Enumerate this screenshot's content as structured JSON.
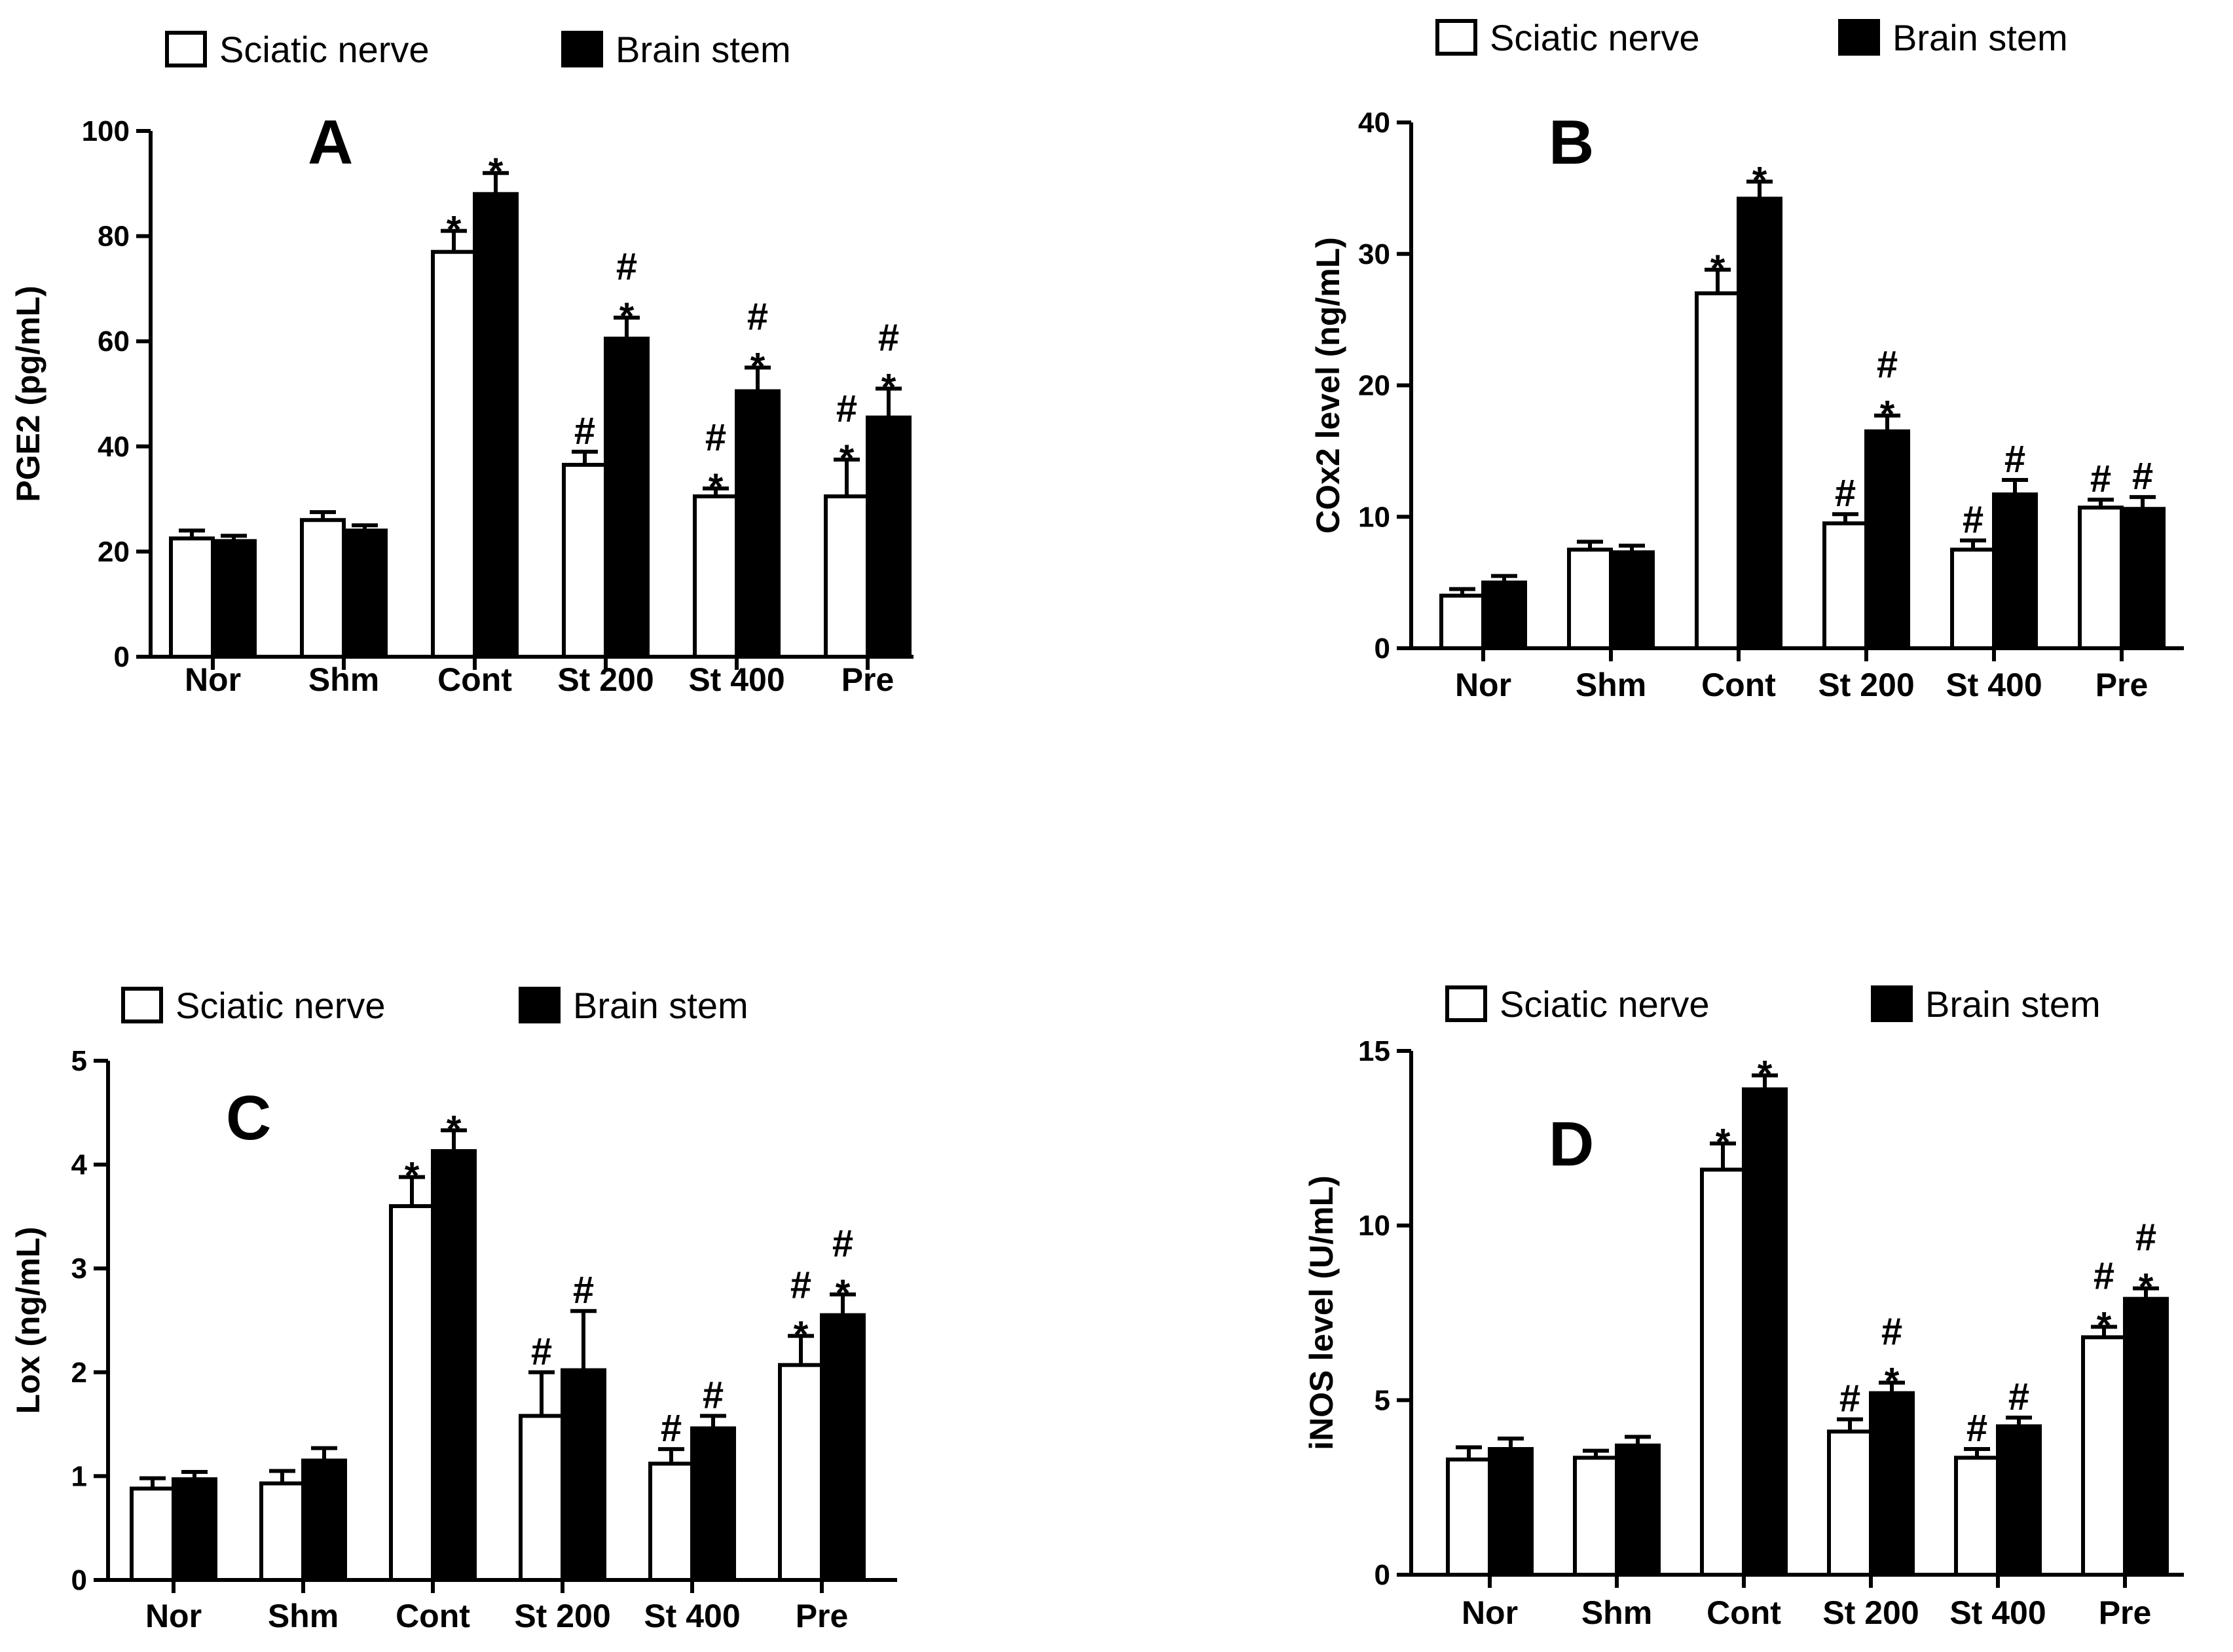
{
  "colors": {
    "sciatic_fill": "#ffffff",
    "brain_fill": "#000000",
    "stroke": "#000000"
  },
  "chart_data": [
    {
      "type": "bar",
      "panel": "A",
      "ylabel": "PGE2 (pg/mL)",
      "ylim": [
        0,
        100
      ],
      "yticks": [
        0,
        20,
        40,
        60,
        80,
        100
      ],
      "categories": [
        "Nor",
        "Shm",
        "Cont",
        "St 200",
        "St 400",
        "Pre"
      ],
      "legend": [
        "Sciatic nerve",
        "Brain stem"
      ],
      "series": [
        {
          "name": "Sciatic nerve",
          "values": [
            22.5,
            26,
            77,
            36.5,
            30.5,
            30.5
          ],
          "errors": [
            1.5,
            1.5,
            4,
            2.5,
            1.5,
            7
          ],
          "marks": [
            "",
            "",
            "*",
            "#",
            "*#",
            "*#"
          ]
        },
        {
          "name": "Brain stem",
          "values": [
            22,
            24,
            88,
            60.5,
            50.5,
            45.5
          ],
          "errors": [
            1,
            1,
            4,
            4,
            4.5,
            5.5
          ],
          "marks": [
            "",
            "",
            "*",
            "*#",
            "*#",
            "*#"
          ]
        }
      ]
    },
    {
      "type": "bar",
      "panel": "B",
      "ylabel": "COx2 level (ng/mL)",
      "ylim": [
        0,
        40
      ],
      "yticks": [
        0,
        10,
        20,
        30,
        40
      ],
      "categories": [
        "Nor",
        "Shm",
        "Cont",
        "St 200",
        "St 400",
        "Pre"
      ],
      "legend": [
        "Sciatic nerve",
        "Brain stem"
      ],
      "series": [
        {
          "name": "Sciatic nerve",
          "values": [
            4,
            7.5,
            27,
            9.5,
            7.5,
            10.7
          ],
          "errors": [
            0.5,
            0.6,
            1.8,
            0.7,
            0.7,
            0.6
          ],
          "marks": [
            "",
            "",
            "*",
            "#",
            "#",
            "#"
          ]
        },
        {
          "name": "Brain stem",
          "values": [
            5,
            7.3,
            34.2,
            16.5,
            11.7,
            10.6
          ],
          "errors": [
            0.5,
            0.5,
            1.3,
            1.2,
            1.1,
            0.9
          ],
          "marks": [
            "",
            "",
            "*",
            "*#",
            "#",
            "#"
          ]
        }
      ]
    },
    {
      "type": "bar",
      "panel": "C",
      "ylabel": "Lox (ng/mL)",
      "ylim": [
        0,
        5
      ],
      "yticks": [
        0,
        1,
        2,
        3,
        4,
        5
      ],
      "categories": [
        "Nor",
        "Shm",
        "Cont",
        "St 200",
        "St 400",
        "Pre"
      ],
      "legend": [
        "Sciatic nerve",
        "Brain stem"
      ],
      "series": [
        {
          "name": "Sciatic nerve",
          "values": [
            0.88,
            0.93,
            3.6,
            1.58,
            1.12,
            2.07
          ],
          "errors": [
            0.1,
            0.12,
            0.28,
            0.42,
            0.14,
            0.28
          ],
          "marks": [
            "",
            "",
            "*",
            "#",
            "#",
            "*#"
          ]
        },
        {
          "name": "Brain stem",
          "values": [
            0.97,
            1.15,
            4.13,
            2.02,
            1.46,
            2.55
          ],
          "errors": [
            0.07,
            0.12,
            0.2,
            0.57,
            0.12,
            0.2
          ],
          "marks": [
            "",
            "",
            "*",
            "#",
            "#",
            "*#"
          ]
        }
      ]
    },
    {
      "type": "bar",
      "panel": "D",
      "ylabel": "iNOS level (U/mL)",
      "ylim": [
        0,
        15
      ],
      "yticks": [
        0,
        5,
        10,
        15
      ],
      "categories": [
        "Nor",
        "Shm",
        "Cont",
        "St 200",
        "St 400",
        "Pre"
      ],
      "legend": [
        "Sciatic nerve",
        "Brain stem"
      ],
      "series": [
        {
          "name": "Sciatic nerve",
          "values": [
            3.3,
            3.35,
            11.6,
            4.1,
            3.35,
            6.8
          ],
          "errors": [
            0.35,
            0.2,
            0.75,
            0.35,
            0.25,
            0.3
          ],
          "marks": [
            "",
            "",
            "*",
            "#",
            "#",
            "*#"
          ]
        },
        {
          "name": "Brain stem",
          "values": [
            3.6,
            3.7,
            13.9,
            5.2,
            4.25,
            7.9
          ],
          "errors": [
            0.3,
            0.25,
            0.4,
            0.3,
            0.25,
            0.3
          ],
          "marks": [
            "",
            "",
            "*",
            "*#",
            "#",
            "*#"
          ]
        }
      ]
    }
  ]
}
